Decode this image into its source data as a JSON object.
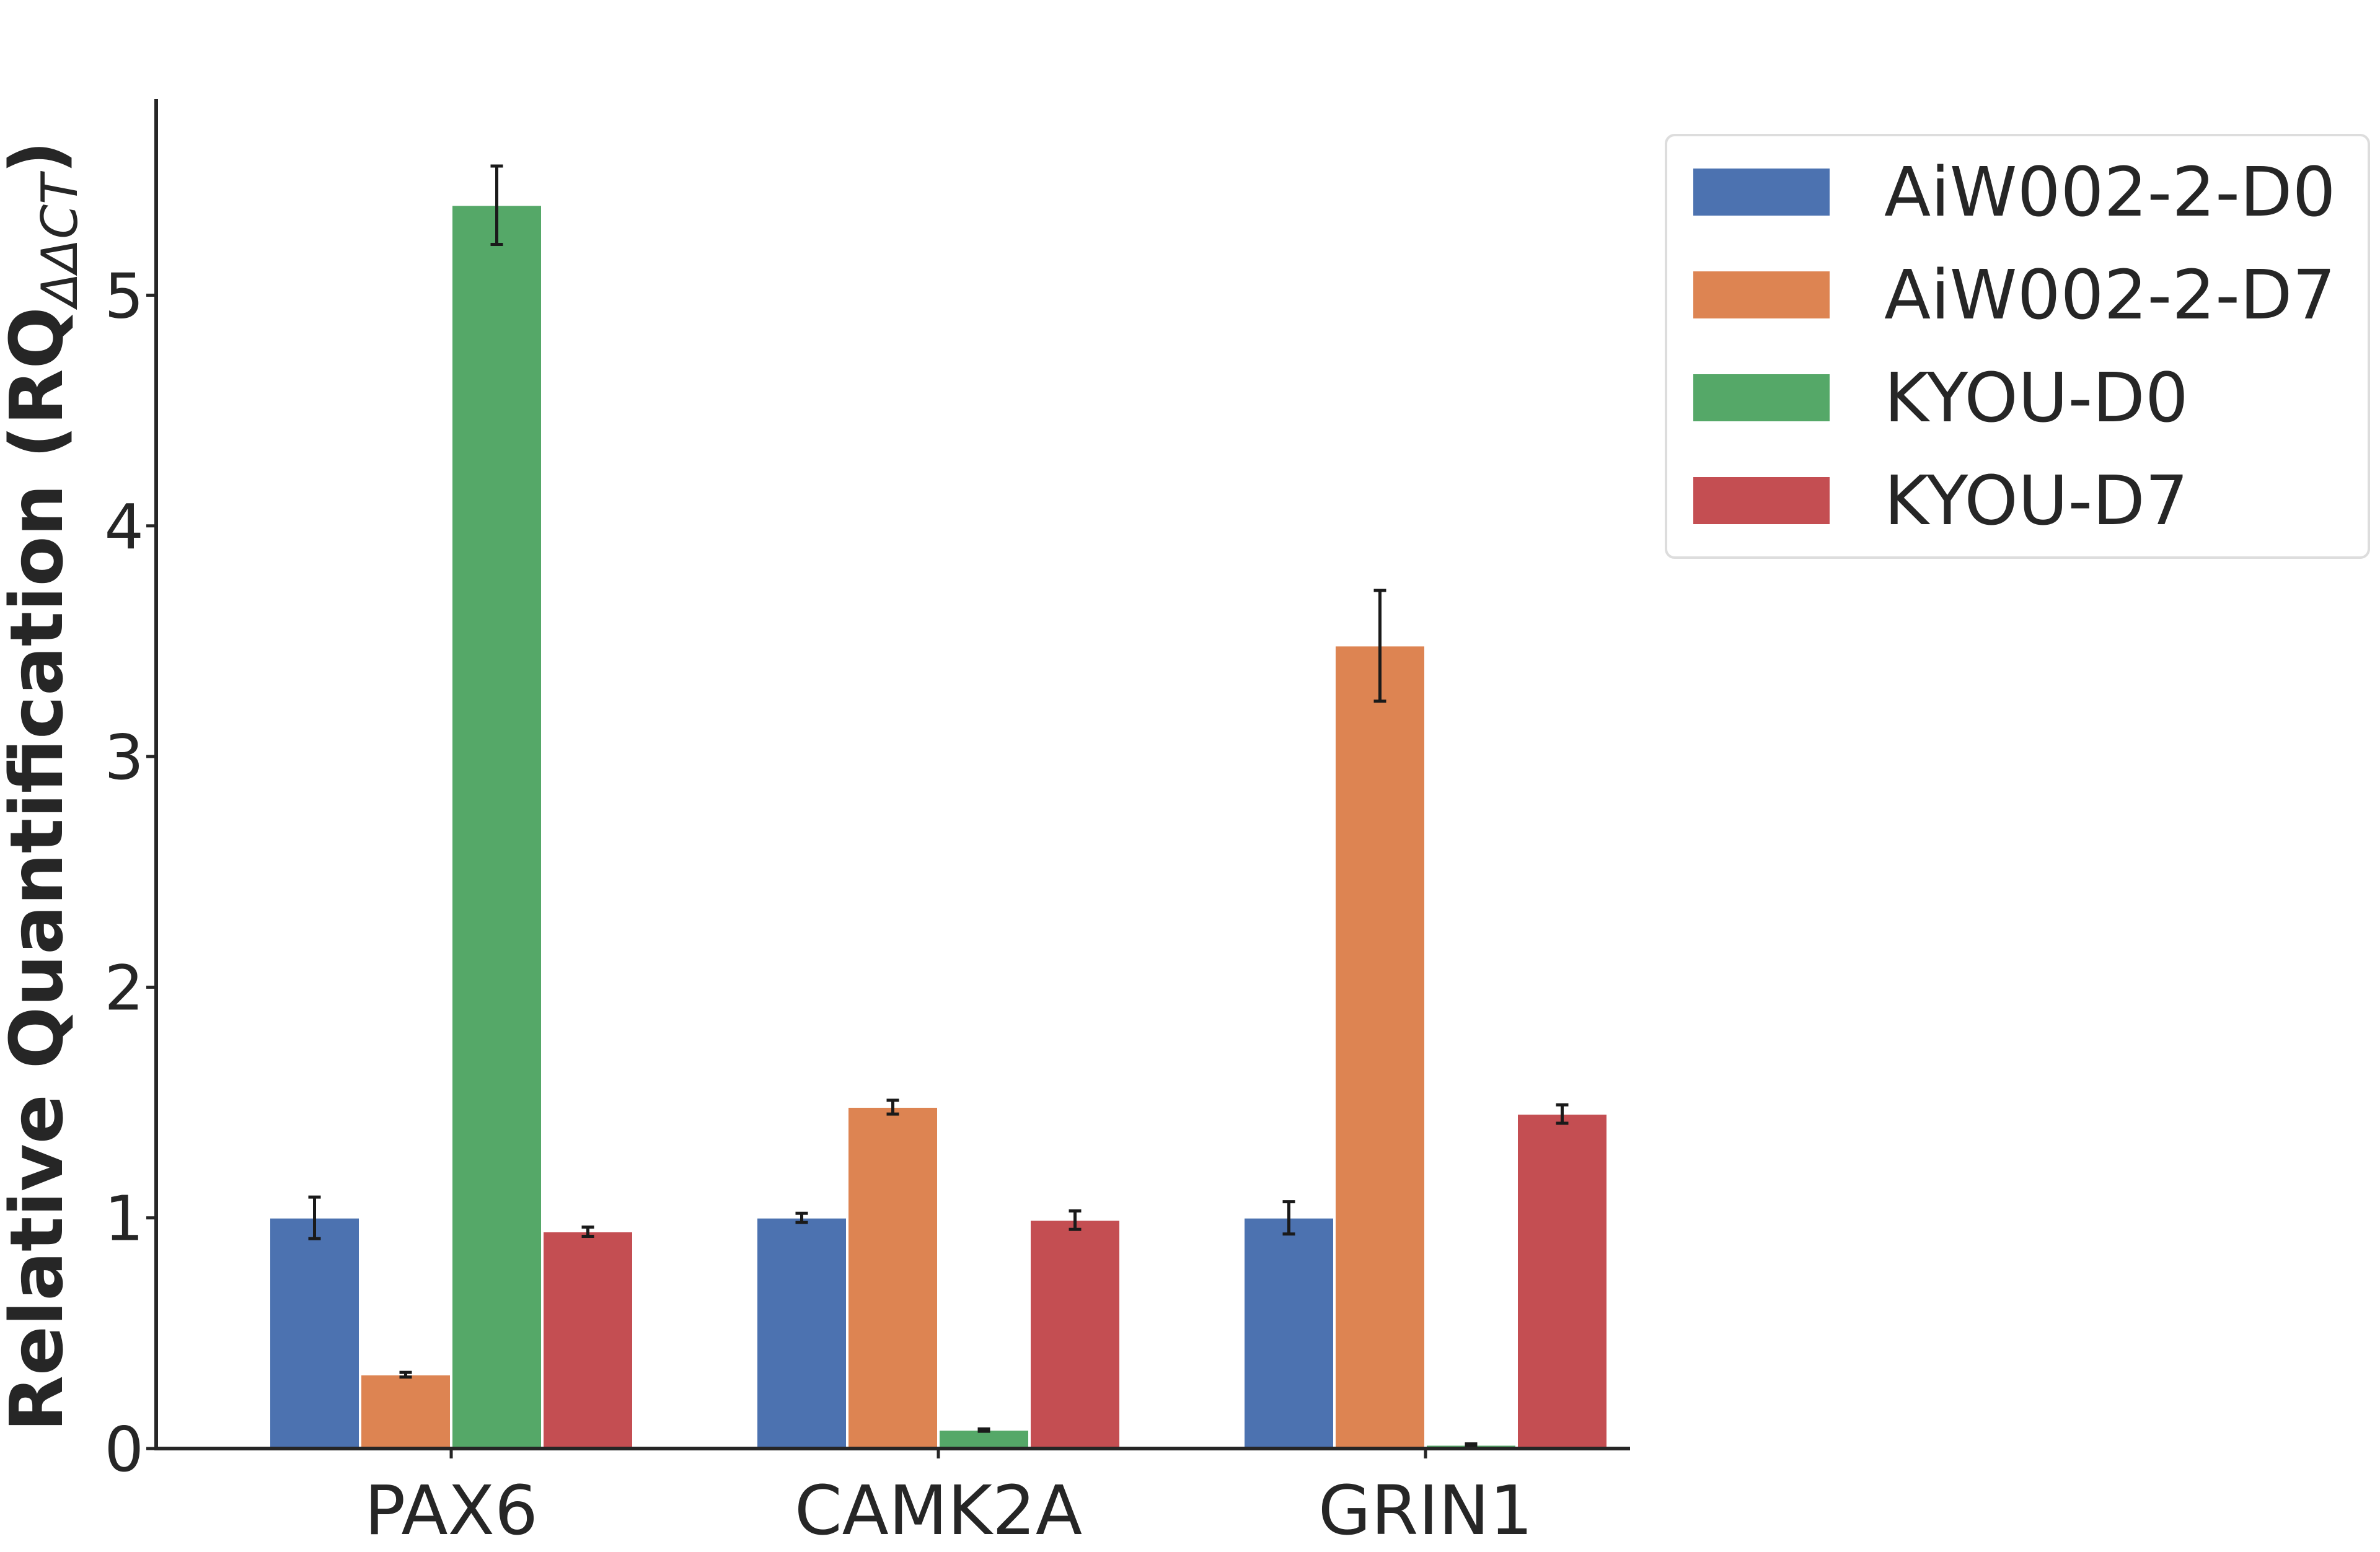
{
  "chart_data": {
    "type": "bar",
    "categories": [
      "PAX6",
      "CAMK2A",
      "GRIN1"
    ],
    "series": [
      {
        "name": "AiW002-2-D0",
        "color": "#4c72b0",
        "values": [
          1.0,
          1.0,
          1.0
        ],
        "errors": [
          0.09,
          0.02,
          0.07
        ]
      },
      {
        "name": "AiW002-2-D7",
        "color": "#dd8452",
        "values": [
          0.32,
          1.48,
          3.48
        ],
        "errors": [
          0.01,
          0.03,
          0.24
        ]
      },
      {
        "name": "KYOU-D0",
        "color": "#55a868",
        "values": [
          5.39,
          0.08,
          0.015
        ],
        "errors": [
          0.17,
          0.005,
          0.005
        ]
      },
      {
        "name": "KYOU-D7",
        "color": "#c44e52",
        "values": [
          0.94,
          0.99,
          1.45
        ],
        "errors": [
          0.02,
          0.04,
          0.04
        ]
      }
    ],
    "ylabel_main": "Relative Quantification (RQ",
    "ylabel_sub": "ΔΔCT",
    "ylabel_close": ")",
    "xlabel": "",
    "ylim": [
      0,
      5.85
    ],
    "yticks": [
      "0",
      "1",
      "2",
      "3",
      "4",
      "5"
    ],
    "grid": false,
    "legend_position": "top-right"
  }
}
